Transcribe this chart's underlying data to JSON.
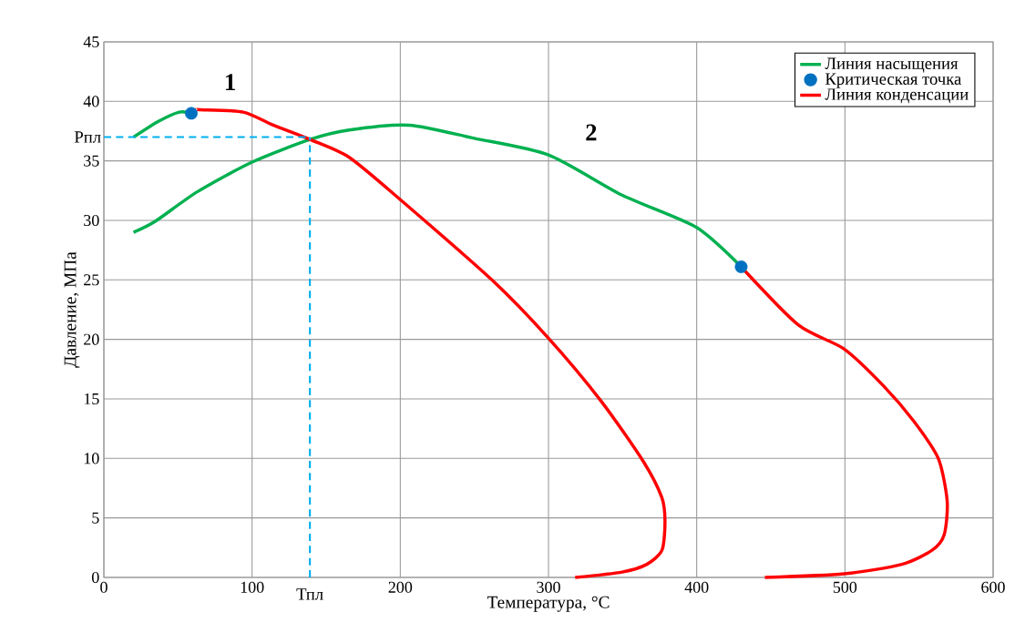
{
  "chart_data": {
    "type": "line",
    "xlabel": "Температура, °C",
    "ylabel": "Давление, МПа",
    "xlim": [
      0,
      600
    ],
    "ylim": [
      0,
      45
    ],
    "xticks": [
      0,
      100,
      200,
      300,
      400,
      500,
      600
    ],
    "yticks": [
      0,
      5,
      10,
      15,
      20,
      25,
      30,
      35,
      40,
      45
    ],
    "grid": true,
    "legend": "top right",
    "line_style": "solid",
    "series": [
      {
        "name": "Линия насыщения",
        "color": "#00b050",
        "x": [
          20.1,
          36.5,
          50.8,
          59,
          null,
          20,
          34.4,
          63,
          100,
          139,
          165.5,
          206,
          250,
          300,
          350,
          400,
          430
        ],
        "values": [
          37,
          38.3,
          39.1,
          39,
          null,
          29,
          29.9,
          32.4,
          34.9,
          36.8,
          37.6,
          38,
          36.9,
          35.5,
          32.1,
          29.4,
          26.1
        ]
      },
      {
        "name": "Критическая точка",
        "type": "scatter",
        "marker": "circle",
        "color": "#0070c0",
        "x": [
          59,
          430
        ],
        "values": [
          39,
          26.1
        ]
      },
      {
        "name": "Линия конденсации",
        "color": "#ff0000",
        "x": [
          62,
          65,
          94,
          114.3,
          139,
          165.5,
          200.4,
          261.8,
          300,
          335.6,
          364.2,
          376.5,
          378.6,
          376.6,
          366.3,
          349.7,
          318,
          null,
          430,
          468.7,
          499.4,
          526,
          546.6,
          563,
          569,
          567,
          559,
          538.4,
          499.5,
          446
        ],
        "values": [
          39.3,
          39.3,
          39.1,
          38,
          36.8,
          35.3,
          31.7,
          25,
          20.1,
          14.8,
          9.7,
          6.7,
          4.7,
          2.3,
          1.1,
          0.45,
          0,
          null,
          26.1,
          21.2,
          19.2,
          16.1,
          13.1,
          10,
          6.4,
          3.6,
          2.3,
          1.1,
          0.3,
          0
        ]
      }
    ],
    "ref_lines": [
      {
        "axis": "y",
        "value": 37,
        "label": "Рпл",
        "color": "#00b0f0",
        "line_style": "dashed"
      },
      {
        "axis": "x",
        "value": 139,
        "label": "Тпл",
        "color": "#00b0f0",
        "line_style": "dashed"
      }
    ],
    "annotations": [
      "1",
      "2"
    ]
  }
}
